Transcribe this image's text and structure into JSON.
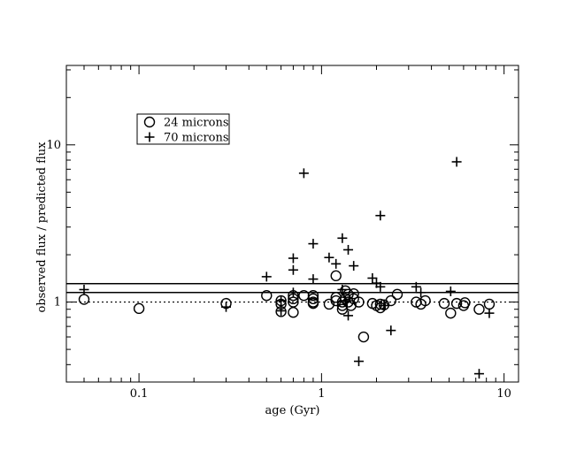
{
  "chart_data": {
    "type": "scatter",
    "title": "",
    "xlabel": "age (Gyr)",
    "ylabel": "observed flux / predicted flux",
    "xscale": "log",
    "yscale": "log",
    "xlim": [
      0.04,
      12
    ],
    "ylim": [
      0.31,
      32
    ],
    "x_ticks": [
      0.1,
      1,
      10
    ],
    "x_tick_labels": [
      "0.1",
      "1",
      "10"
    ],
    "y_ticks": [
      1,
      10
    ],
    "y_tick_labels": [
      "1",
      "10"
    ],
    "grid": false,
    "legend_position": "top-left",
    "reference_lines": [
      {
        "y": 1.0,
        "style": "dotted"
      },
      {
        "y": 1.15,
        "style": "solid"
      },
      {
        "y": 1.31,
        "style": "solid"
      }
    ],
    "series": [
      {
        "name": "24 microns",
        "marker": "circle",
        "points": [
          [
            0.05,
            1.04
          ],
          [
            0.1,
            0.91
          ],
          [
            0.3,
            0.98
          ],
          [
            0.5,
            1.1
          ],
          [
            0.6,
            0.97
          ],
          [
            0.6,
            1.02
          ],
          [
            0.6,
            0.87
          ],
          [
            0.7,
            0.86
          ],
          [
            0.7,
            1.0
          ],
          [
            0.7,
            1.05
          ],
          [
            0.7,
            1.1
          ],
          [
            0.8,
            1.1
          ],
          [
            0.9,
            1.0
          ],
          [
            0.9,
            0.98
          ],
          [
            0.9,
            1.05
          ],
          [
            0.9,
            1.1
          ],
          [
            1.1,
            0.97
          ],
          [
            1.2,
            1.07
          ],
          [
            1.2,
            1.47
          ],
          [
            1.2,
            1.02
          ],
          [
            1.3,
            1.0
          ],
          [
            1.3,
            0.9
          ],
          [
            1.3,
            0.95
          ],
          [
            1.35,
            1.05
          ],
          [
            1.35,
            1.18
          ],
          [
            1.4,
            1.0
          ],
          [
            1.4,
            1.12
          ],
          [
            1.45,
            0.95
          ],
          [
            1.5,
            1.05
          ],
          [
            1.5,
            1.13
          ],
          [
            1.6,
            1.0
          ],
          [
            1.7,
            0.6
          ],
          [
            1.9,
            0.98
          ],
          [
            2.0,
            0.95
          ],
          [
            2.1,
            0.97
          ],
          [
            2.1,
            0.92
          ],
          [
            2.2,
            0.96
          ],
          [
            2.4,
            1.02
          ],
          [
            2.6,
            1.12
          ],
          [
            3.3,
            1.0
          ],
          [
            3.5,
            0.97
          ],
          [
            3.7,
            1.02
          ],
          [
            4.7,
            0.98
          ],
          [
            5.1,
            0.85
          ],
          [
            5.5,
            0.98
          ],
          [
            6.0,
            0.95
          ],
          [
            6.1,
            0.99
          ],
          [
            7.3,
            0.9
          ],
          [
            8.3,
            0.97
          ]
        ]
      },
      {
        "name": "70 microns",
        "marker": "plus",
        "points": [
          [
            0.05,
            1.2
          ],
          [
            0.3,
            0.93
          ],
          [
            0.5,
            1.45
          ],
          [
            0.6,
            0.88
          ],
          [
            0.6,
            1.02
          ],
          [
            0.7,
            1.6
          ],
          [
            0.7,
            1.9
          ],
          [
            0.7,
            1.15
          ],
          [
            0.8,
            6.6
          ],
          [
            0.9,
            2.35
          ],
          [
            0.9,
            1.4
          ],
          [
            1.1,
            1.92
          ],
          [
            1.2,
            1.75
          ],
          [
            1.3,
            2.55
          ],
          [
            1.3,
            1.2
          ],
          [
            1.35,
            1.02
          ],
          [
            1.4,
            2.15
          ],
          [
            1.4,
            0.82
          ],
          [
            1.5,
            1.7
          ],
          [
            1.6,
            0.42
          ],
          [
            1.9,
            1.42
          ],
          [
            2.0,
            1.32
          ],
          [
            2.1,
            3.55
          ],
          [
            2.1,
            1.25
          ],
          [
            2.2,
            0.95
          ],
          [
            2.4,
            0.66
          ],
          [
            3.3,
            1.25
          ],
          [
            3.5,
            1.15
          ],
          [
            5.1,
            1.17
          ],
          [
            5.5,
            7.8
          ],
          [
            7.3,
            0.35
          ],
          [
            8.3,
            0.85
          ]
        ]
      }
    ]
  }
}
